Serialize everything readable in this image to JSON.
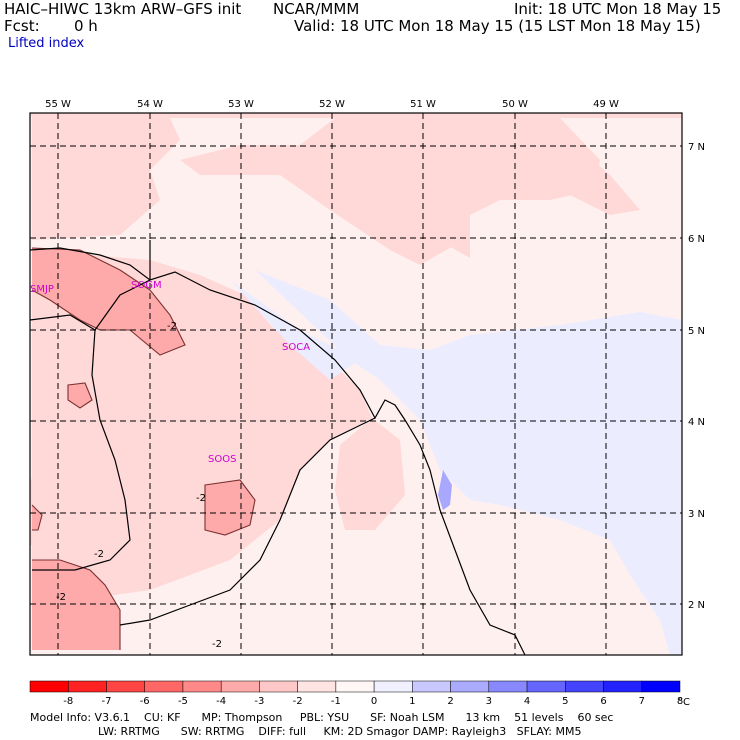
{
  "header": {
    "model_title": "HAIC–HIWC 13km ARW–GFS init",
    "center": "NCAR/MMM",
    "init": "Init: 18 UTC Mon 18 May 15",
    "fcst_label": "Fcst:",
    "fcst_value": "0 h",
    "valid": "Valid: 18 UTC Mon 18 May 15 (15 LST Mon 18 May 15)",
    "field_name": "Lifted index"
  },
  "map": {
    "lon_labels": [
      "55 W",
      "54 W",
      "53 W",
      "52 W",
      "51 W",
      "50 W",
      "49 W"
    ],
    "lat_labels": [
      "7 N",
      "6 N",
      "5 N",
      "4 N",
      "3 N",
      "2 N"
    ],
    "stations": [
      "SMJP",
      "SOGM",
      "SOCA",
      "SOOS"
    ],
    "contour_labels": [
      "-2",
      "-2",
      "-2",
      "-2",
      "-2",
      "-2"
    ]
  },
  "colorbar": {
    "tick_labels": [
      "-8",
      "-7",
      "-6",
      "-5",
      "-4",
      "-3",
      "-2",
      "-1",
      "0",
      "1",
      "2",
      "3",
      "4",
      "5",
      "6",
      "7",
      "8"
    ],
    "unit": "°C",
    "colors": [
      "#ff0000",
      "#ff2222",
      "#ff4444",
      "#ff6666",
      "#ff8888",
      "#ffaaaa",
      "#ffc8c8",
      "#ffe4e4",
      "#fff6f6",
      "#f0f0ff",
      "#c8c8ff",
      "#aaaaff",
      "#8888ff",
      "#6666ff",
      "#4444ff",
      "#2222ff",
      "#0000ff"
    ]
  },
  "footer": {
    "line1": "Model Info: V3.6.1    CU: KF      MP: Thompson     PBL: YSU      SF: Noah LSM      13 km    51 levels    60 sec",
    "line2": "LW: RRTMG      SW: RRTMG    DIFF: full     KM: 2D Smagor DAMP: Rayleigh3   SFLAY: MM5"
  }
}
